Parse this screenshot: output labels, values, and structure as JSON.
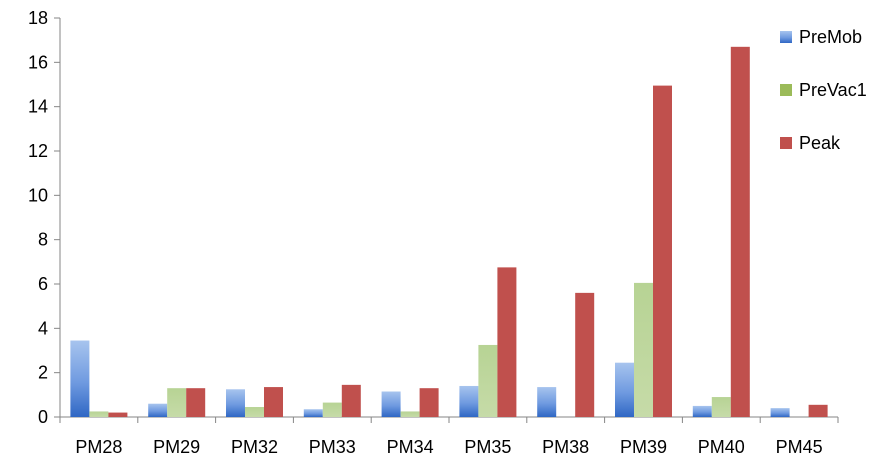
{
  "chart_data": {
    "type": "bar",
    "categories": [
      "PM28",
      "PM29",
      "PM32",
      "PM33",
      "PM34",
      "PM35",
      "PM38",
      "PM39",
      "PM40",
      "PM45"
    ],
    "series": [
      {
        "name": "PreMob",
        "values": [
          3.45,
          0.6,
          1.25,
          0.35,
          1.15,
          1.4,
          1.35,
          2.45,
          0.5,
          0.4
        ]
      },
      {
        "name": "PreVac1",
        "values": [
          0.25,
          1.3,
          0.45,
          0.65,
          0.25,
          3.25,
          0,
          6.05,
          0.9,
          0
        ]
      },
      {
        "name": "Peak",
        "values": [
          0.2,
          1.3,
          1.35,
          1.45,
          1.3,
          6.75,
          5.6,
          14.95,
          16.7,
          0.55
        ]
      }
    ],
    "title": "",
    "xlabel": "",
    "ylabel": "",
    "ylim": [
      0,
      18
    ],
    "yticks": [
      "0",
      "2",
      "4",
      "6",
      "8",
      "10",
      "12",
      "14",
      "16",
      "18"
    ],
    "grid": false,
    "legend": "right",
    "colors": {
      "PreMob": "#4F81BD",
      "PreVac1": "#9BBB59",
      "Peak": "#C0504D",
      "axis": "#868686"
    }
  }
}
